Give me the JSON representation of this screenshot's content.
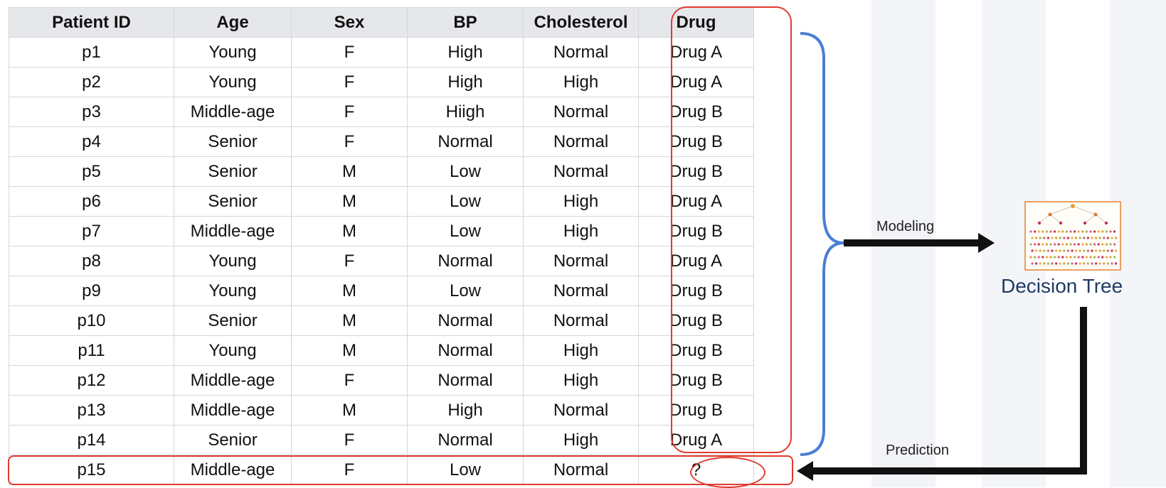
{
  "table": {
    "headers": [
      "Patient ID",
      "Age",
      "Sex",
      "BP",
      "Cholesterol",
      "Drug"
    ],
    "rows": [
      [
        "p1",
        "Young",
        "F",
        "High",
        "Normal",
        "Drug A"
      ],
      [
        "p2",
        "Young",
        "F",
        "High",
        "High",
        "Drug A"
      ],
      [
        "p3",
        "Middle-age",
        "F",
        "Hiigh",
        "Normal",
        "Drug B"
      ],
      [
        "p4",
        "Senior",
        "F",
        "Normal",
        "Normal",
        "Drug B"
      ],
      [
        "p5",
        "Senior",
        "M",
        "Low",
        "Normal",
        "Drug B"
      ],
      [
        "p6",
        "Senior",
        "M",
        "Low",
        "High",
        "Drug A"
      ],
      [
        "p7",
        "Middle-age",
        "M",
        "Low",
        "High",
        "Drug B"
      ],
      [
        "p8",
        "Young",
        "F",
        "Normal",
        "Normal",
        "Drug A"
      ],
      [
        "p9",
        "Young",
        "M",
        "Low",
        "Normal",
        "Drug B"
      ],
      [
        "p10",
        "Senior",
        "M",
        "Normal",
        "Normal",
        "Drug B"
      ],
      [
        "p11",
        "Young",
        "M",
        "Normal",
        "High",
        "Drug B"
      ],
      [
        "p12",
        "Middle-age",
        "F",
        "Normal",
        "High",
        "Drug B"
      ],
      [
        "p13",
        "Middle-age",
        "M",
        "High",
        "Normal",
        "Drug B"
      ],
      [
        "p14",
        "Senior",
        "F",
        "Normal",
        "High",
        "Drug A"
      ]
    ],
    "new_row": [
      "p15",
      "Middle-age",
      "F",
      "Low",
      "Normal",
      "?"
    ]
  },
  "diagram": {
    "modeling_label": "Modeling",
    "prediction_label": "Prediction",
    "model_label": "Decision Tree",
    "model_icon": "decision-tree-icon"
  },
  "colors": {
    "highlight": "#e03a2f",
    "brace": "#4a7fd4",
    "arrow": "#111111",
    "model_text": "#1f3b63",
    "header_bg": "#e6e7ea"
  }
}
